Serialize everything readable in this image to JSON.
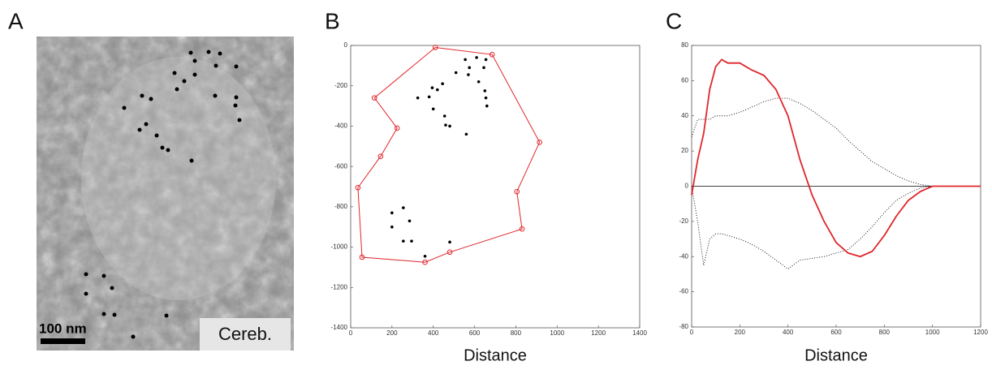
{
  "panel_a": {
    "panel_label": "A",
    "scale_bar": "100 nm",
    "region": "Cereb."
  },
  "chart_data": [
    {
      "type": "scatter",
      "panel_label": "B",
      "xlabel": "Distance",
      "xlim": [
        0,
        1400
      ],
      "xticks": [
        0,
        200,
        400,
        600,
        800,
        1000,
        1200,
        1400
      ],
      "ylim": [
        -1400,
        0
      ],
      "yticks": [
        0,
        -200,
        -400,
        -600,
        -800,
        -1000,
        -1200,
        -1400
      ],
      "polygon": {
        "color": "#e0262b",
        "x": [
          410,
          685,
          915,
          805,
          830,
          480,
          360,
          55,
          35,
          145,
          225,
          115
        ],
        "y": [
          -10,
          -45,
          -480,
          -725,
          -910,
          -1025,
          -1075,
          -1050,
          -705,
          -550,
          -410,
          -260
        ]
      },
      "points": {
        "color": "#000000",
        "x": [
          555,
          610,
          655,
          575,
          570,
          645,
          510,
          445,
          395,
          420,
          325,
          380,
          400,
          455,
          460,
          480,
          560,
          620,
          650,
          655,
          660,
          200,
          255,
          285,
          200,
          255,
          295,
          480,
          360
        ],
        "y": [
          -70,
          -60,
          -70,
          -110,
          -145,
          -110,
          -135,
          -190,
          -210,
          -220,
          -260,
          -255,
          -315,
          -350,
          -395,
          -400,
          -440,
          -180,
          -225,
          -260,
          -300,
          -830,
          -805,
          -870,
          -900,
          -970,
          -970,
          -975,
          -1045
        ]
      }
    },
    {
      "type": "line",
      "panel_label": "C",
      "xlabel": "Distance",
      "xlim": [
        0,
        1200
      ],
      "xticks": [
        0,
        200,
        400,
        600,
        800,
        1000,
        1200
      ],
      "ylim": [
        -80,
        80
      ],
      "yticks": [
        80,
        60,
        40,
        20,
        0,
        -20,
        -40,
        -60,
        -80
      ],
      "x": [
        0,
        25,
        50,
        75,
        100,
        125,
        150,
        200,
        250,
        300,
        350,
        400,
        450,
        500,
        550,
        600,
        650,
        700,
        750,
        800,
        850,
        900,
        950,
        1000,
        1050,
        1100,
        1200
      ],
      "series": [
        {
          "color": "#000000",
          "style": "dotted",
          "values": [
            28,
            38,
            38,
            38,
            40,
            40,
            40,
            42,
            45,
            48,
            50,
            50,
            47,
            43,
            38,
            33,
            26,
            20,
            14,
            10,
            6,
            3,
            1,
            0,
            0,
            0,
            0
          ]
        },
        {
          "color": "#000000",
          "style": "dotted",
          "values": [
            0,
            -20,
            -45,
            -30,
            -27,
            -27,
            -28,
            -30,
            -33,
            -37,
            -42,
            -47,
            -42,
            -41,
            -40,
            -38,
            -36,
            -30,
            -23,
            -15,
            -8,
            -4,
            -1,
            0,
            0,
            0,
            0
          ]
        },
        {
          "color": "#e0262b",
          "style": "solid",
          "values": [
            -5,
            15,
            30,
            55,
            68,
            72,
            70,
            70,
            66,
            63,
            55,
            40,
            15,
            -5,
            -20,
            -32,
            -38,
            -40,
            -37,
            -28,
            -17,
            -8,
            -3,
            0,
            0,
            0,
            0
          ]
        }
      ]
    }
  ]
}
